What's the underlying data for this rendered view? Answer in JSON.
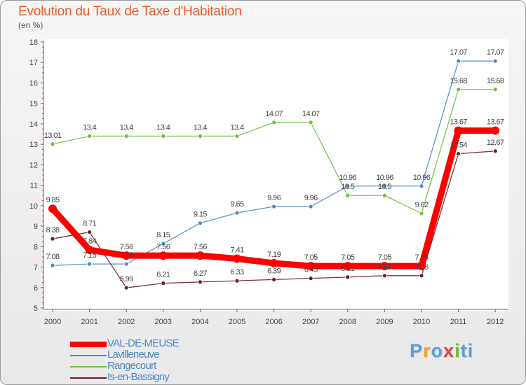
{
  "header": {
    "title": "Evolution du Taux de Taxe d'Habitation",
    "subtitle": "(en %)"
  },
  "logo": {
    "text": "Proxiti"
  },
  "chart_data": {
    "type": "line",
    "title": "Evolution du Taux de Taxe d'Habitation",
    "ylabel": "(en %)",
    "xlabel": "",
    "x": [
      "2000",
      "2001",
      "2002",
      "2003",
      "2004",
      "2005",
      "2006",
      "2007",
      "2008",
      "2009",
      "2010",
      "2011",
      "2012"
    ],
    "ylim": [
      5,
      18
    ],
    "yticks": [
      "5",
      "6",
      "7",
      "8",
      "9",
      "10",
      "11",
      "12",
      "13",
      "14",
      "15",
      "16",
      "17",
      "18"
    ],
    "grid": false,
    "legend_position": "bottom-left",
    "series": [
      {
        "name": "VAL-DE-MEUSE",
        "color": "#ff0000",
        "values": [
          9.85,
          7.84,
          7.56,
          7.56,
          7.56,
          7.41,
          7.19,
          7.05,
          7.05,
          7.05,
          7.05,
          13.67,
          13.67
        ],
        "labels": [
          "9.85",
          "7.84",
          "7.56",
          "7.56",
          "7.56",
          "7.41",
          "7.19",
          "7.05",
          "7.05",
          "7.05",
          "7.05",
          "13.67",
          "13.67"
        ]
      },
      {
        "name": "Lavilleneuve",
        "color": "#4d88c8",
        "values": [
          7.08,
          7.15,
          7.15,
          8.15,
          9.15,
          9.65,
          9.96,
          9.96,
          10.96,
          10.96,
          10.96,
          17.07,
          17.07
        ],
        "labels": [
          "7.08",
          "7.15",
          "7.15",
          "8.15",
          "9.15",
          "9.65",
          "9.96",
          "9.96",
          "10.96",
          "10.96",
          "10.96",
          "17.07",
          "17.07"
        ]
      },
      {
        "name": "Rangecourt",
        "color": "#6cc23e",
        "values": [
          13.01,
          13.4,
          13.4,
          13.4,
          13.4,
          13.4,
          14.07,
          14.07,
          10.5,
          10.5,
          9.62,
          15.68,
          15.68
        ],
        "labels": [
          "13.01",
          "13.4",
          "13.4",
          "13.4",
          "13.4",
          "13.4",
          "14.07",
          "14.07",
          "10.5",
          "10.5",
          "9.62",
          "15.68",
          "15.68"
        ]
      },
      {
        "name": "Is-en-Bassigny",
        "color": "#6b1e22",
        "values": [
          8.38,
          8.71,
          5.99,
          6.21,
          6.27,
          6.33,
          6.39,
          6.45,
          6.51,
          6.58,
          6.58,
          12.54,
          12.67
        ],
        "labels": [
          "8.38",
          "8.71",
          "5.99",
          "6.21",
          "6.27",
          "6.33",
          "6.39",
          "6.45",
          "6.51",
          "6.58",
          "6.58",
          "12.54",
          "12.67"
        ]
      }
    ]
  }
}
